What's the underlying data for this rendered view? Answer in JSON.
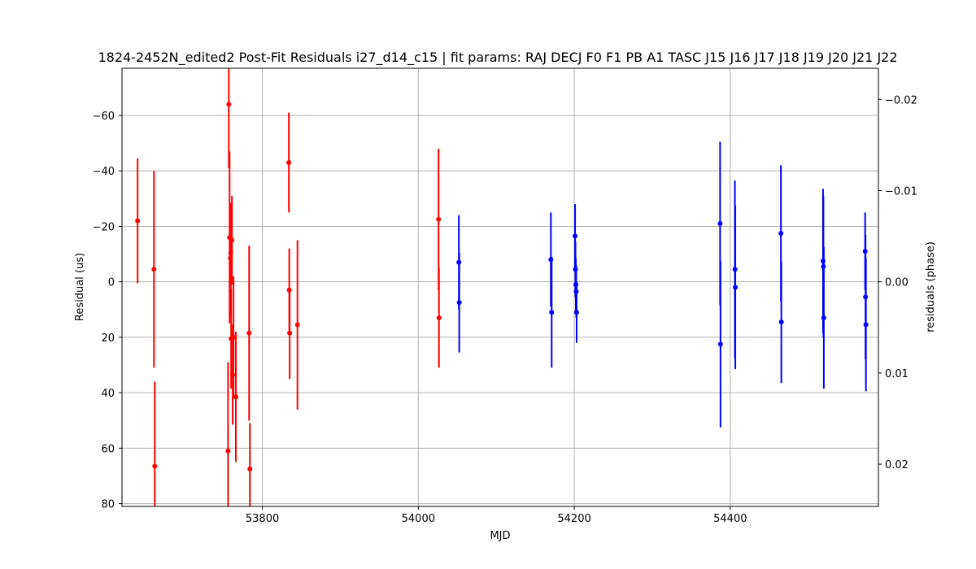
{
  "chart_data": {
    "type": "scatter",
    "title": "1824-2452N_edited2 Post-Fit Residuals i27_d14_c15 | fit params: RAJ DECJ F0 F1 PB A1 TASC J15 J16 J17 J18 J19 J20 J21 J22",
    "xlabel": "MJD",
    "ylabel": "Residual (us)",
    "y2label": "residuals (phase)",
    "xlim": [
      53620,
      54590
    ],
    "ylim": [
      81,
      -77
    ],
    "y2lim": [
      0.02463,
      -0.02341
    ],
    "y_inverted": true,
    "grid": true,
    "xticks": [
      53800,
      54000,
      54200,
      54400
    ],
    "yticks": [
      -60,
      -40,
      -20,
      0,
      20,
      40,
      60,
      80
    ],
    "y2ticks": [
      -0.02,
      -0.01,
      0.0,
      0.01,
      0.02
    ],
    "xtick_labels": [
      "53800",
      "54000",
      "54200",
      "54400"
    ],
    "ytick_labels": [
      "−60",
      "−40",
      "−20",
      "0",
      "20",
      "40",
      "60",
      "80"
    ],
    "y2tick_labels": [
      "−0.02",
      "−0.01",
      "0.00",
      "0.01",
      "0.02"
    ],
    "series": [
      {
        "color": "#ff0000",
        "points": [
          {
            "x": 53640,
            "y": -22.0,
            "err": 22.5
          },
          {
            "x": 53661,
            "y": -4.5,
            "err": 35.5
          },
          {
            "x": 53662,
            "y": 66.5,
            "err": 30.5
          },
          {
            "x": 53756,
            "y": 61.0,
            "err": 32.0
          },
          {
            "x": 53757,
            "y": -64.0,
            "err": 23.0
          },
          {
            "x": 53758,
            "y": -16.0,
            "err": 31.0
          },
          {
            "x": 53759,
            "y": -8.5,
            "err": 20.0
          },
          {
            "x": 53759.5,
            "y": -10.5,
            "err": 18.0
          },
          {
            "x": 53760,
            "y": 20.5,
            "err": 18.0
          },
          {
            "x": 53761,
            "y": -15.0,
            "err": 16.0
          },
          {
            "x": 53762,
            "y": 33.5,
            "err": 18.0
          },
          {
            "x": 53763,
            "y": 20.0,
            "err": 22.0
          },
          {
            "x": 53766,
            "y": 41.5,
            "err": 23.5
          },
          {
            "x": 53783,
            "y": 18.5,
            "err": 31.5
          },
          {
            "x": 53784,
            "y": 67.5,
            "err": 16.5
          },
          {
            "x": 53834,
            "y": -43.0,
            "err": 18.0
          },
          {
            "x": 53834.5,
            "y": 3.0,
            "err": 15.0
          },
          {
            "x": 53835,
            "y": 18.5,
            "err": 16.5
          },
          {
            "x": 53845,
            "y": 15.5,
            "err": 30.5
          },
          {
            "x": 54026,
            "y": -22.5,
            "err": 25.5
          },
          {
            "x": 54026.5,
            "y": 13.0,
            "err": 18.0
          }
        ]
      },
      {
        "color": "#0000ff",
        "points": [
          {
            "x": 54052,
            "y": -7.0,
            "err": 17.0
          },
          {
            "x": 54052.5,
            "y": 7.5,
            "err": 18.0
          },
          {
            "x": 54170,
            "y": -8.0,
            "err": 17.0
          },
          {
            "x": 54171,
            "y": 11.0,
            "err": 20.0
          },
          {
            "x": 54201,
            "y": -16.5,
            "err": 11.5
          },
          {
            "x": 54201.5,
            "y": -4.5,
            "err": 10.0
          },
          {
            "x": 54202,
            "y": 1.0,
            "err": 9.5
          },
          {
            "x": 54202.5,
            "y": 3.5,
            "err": 9.5
          },
          {
            "x": 54203,
            "y": 11.0,
            "err": 11.0
          },
          {
            "x": 54387,
            "y": -21.0,
            "err": 29.5
          },
          {
            "x": 54387.5,
            "y": 22.5,
            "err": 30.0
          },
          {
            "x": 54406,
            "y": -4.5,
            "err": 32.0
          },
          {
            "x": 54406.5,
            "y": 2.0,
            "err": 29.5
          },
          {
            "x": 54465,
            "y": -17.5,
            "err": 24.5
          },
          {
            "x": 54465.5,
            "y": 14.5,
            "err": 22.0
          },
          {
            "x": 54519,
            "y": -7.5,
            "err": 26.0
          },
          {
            "x": 54519.5,
            "y": -5.5,
            "err": 25.5
          },
          {
            "x": 54520,
            "y": 13.0,
            "err": 25.5
          },
          {
            "x": 54573,
            "y": -11.0,
            "err": 14.0
          },
          {
            "x": 54573.5,
            "y": 5.5,
            "err": 22.5
          },
          {
            "x": 54574,
            "y": 15.5,
            "err": 24.0
          }
        ]
      }
    ]
  }
}
